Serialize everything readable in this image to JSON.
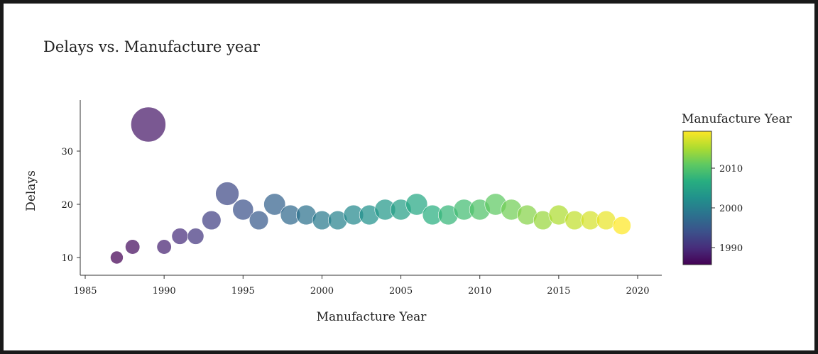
{
  "chart_data": {
    "type": "scatter",
    "title": "Delays vs. Manufacture year",
    "xlabel": "Manufacture Year",
    "ylabel": "Delays",
    "xlim": [
      1984.5,
      2021.5
    ],
    "ylim": [
      7,
      39.5
    ],
    "xticks": [
      1985,
      1990,
      1995,
      2000,
      2005,
      2010,
      2015,
      2020
    ],
    "yticks": [
      10,
      20,
      30
    ],
    "colorbar": {
      "title": "Manufacture Year",
      "range": [
        1987,
        2019
      ],
      "ticks": [
        1990,
        2000,
        2010
      ],
      "colorscale": "viridis"
    },
    "size_encodes": "Delays",
    "points": [
      {
        "x": 1987,
        "y": 10
      },
      {
        "x": 1988,
        "y": 12
      },
      {
        "x": 1989,
        "y": 35
      },
      {
        "x": 1990,
        "y": 12
      },
      {
        "x": 1991,
        "y": 14
      },
      {
        "x": 1992,
        "y": 14
      },
      {
        "x": 1993,
        "y": 17
      },
      {
        "x": 1994,
        "y": 22
      },
      {
        "x": 1995,
        "y": 19
      },
      {
        "x": 1996,
        "y": 17
      },
      {
        "x": 1997,
        "y": 20
      },
      {
        "x": 1998,
        "y": 18
      },
      {
        "x": 1999,
        "y": 18
      },
      {
        "x": 2000,
        "y": 17
      },
      {
        "x": 2001,
        "y": 17
      },
      {
        "x": 2002,
        "y": 18
      },
      {
        "x": 2003,
        "y": 18
      },
      {
        "x": 2004,
        "y": 19
      },
      {
        "x": 2005,
        "y": 19
      },
      {
        "x": 2006,
        "y": 20
      },
      {
        "x": 2007,
        "y": 18
      },
      {
        "x": 2008,
        "y": 18
      },
      {
        "x": 2009,
        "y": 19
      },
      {
        "x": 2010,
        "y": 19
      },
      {
        "x": 2011,
        "y": 20
      },
      {
        "x": 2012,
        "y": 19
      },
      {
        "x": 2013,
        "y": 18
      },
      {
        "x": 2014,
        "y": 17
      },
      {
        "x": 2015,
        "y": 18
      },
      {
        "x": 2016,
        "y": 17
      },
      {
        "x": 2017,
        "y": 17
      },
      {
        "x": 2018,
        "y": 17
      },
      {
        "x": 2019,
        "y": 16
      }
    ]
  }
}
